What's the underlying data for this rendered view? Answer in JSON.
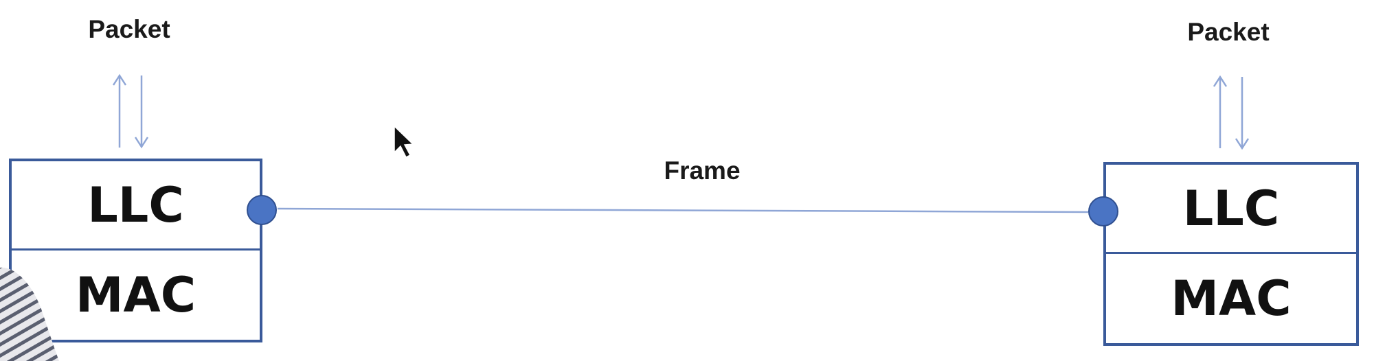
{
  "left_stack": {
    "packet_label": "Packet",
    "llc_label": "LLC",
    "mac_label": "MAC"
  },
  "right_stack": {
    "packet_label": "Packet",
    "llc_label": "LLC",
    "mac_label": "MAC"
  },
  "link": {
    "frame_label": "Frame"
  },
  "colors": {
    "box_border": "#3a5a9a",
    "node_fill": "#4a74c4",
    "line": "#8fa6d6"
  },
  "icons": [
    "cursor-arrow-icon",
    "up-arrow-icon",
    "down-arrow-icon"
  ]
}
